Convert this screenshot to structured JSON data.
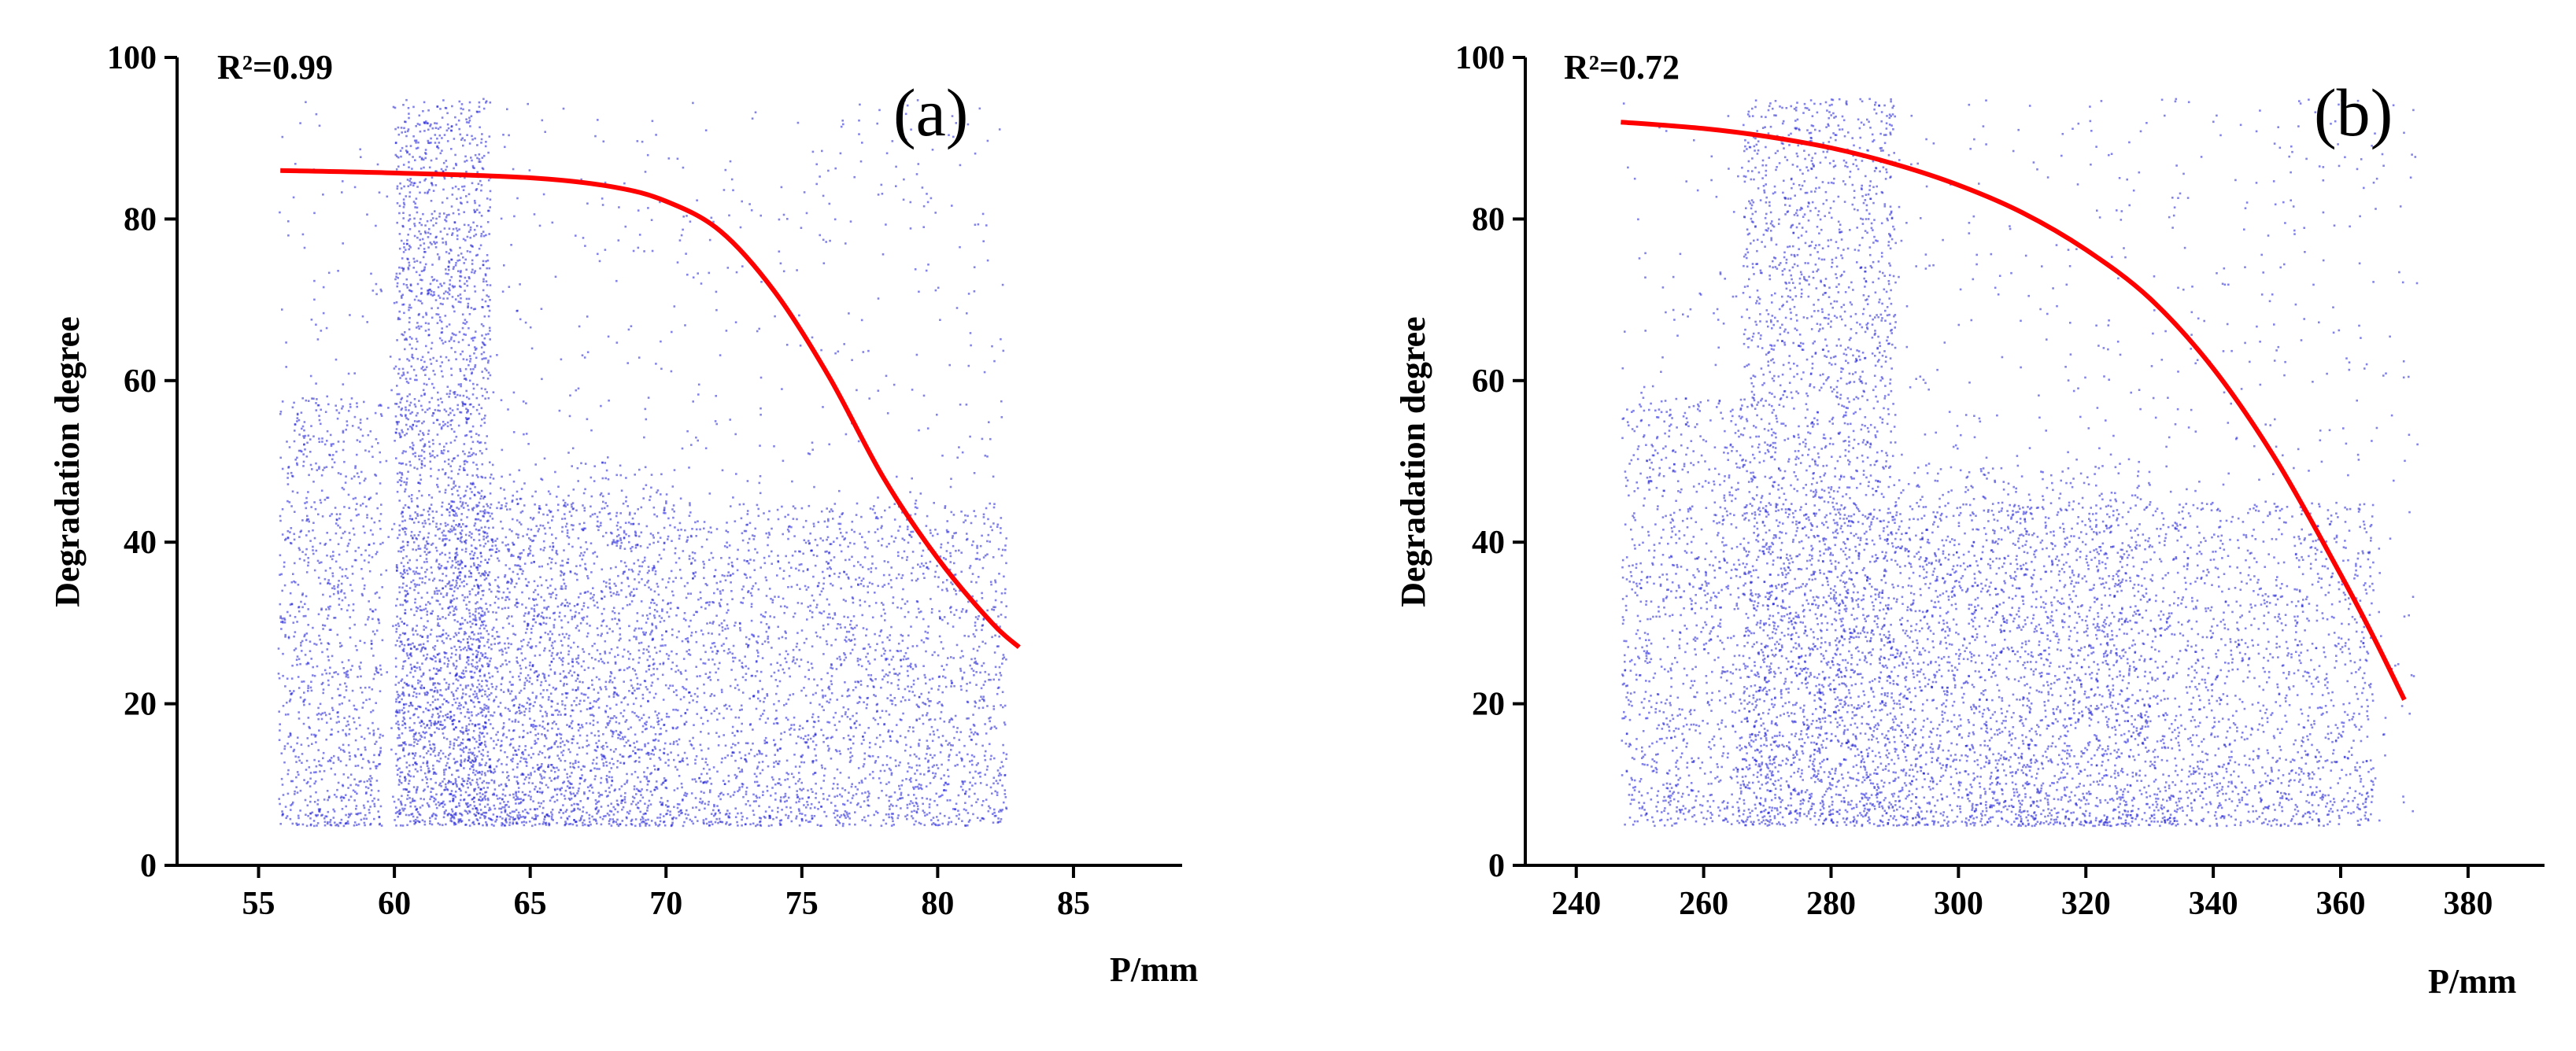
{
  "chart_data": [
    {
      "type": "scatter",
      "panel_label": "(a)",
      "annotation": "R²=0.99",
      "xlabel": "P/mm",
      "ylabel": "Degradation degree",
      "xlim": [
        52,
        89
      ],
      "ylim": [
        0,
        100
      ],
      "xticks": [
        55,
        60,
        65,
        70,
        75,
        80,
        85
      ],
      "yticks": [
        0,
        20,
        40,
        60,
        80,
        100
      ],
      "colors": {
        "points": "#1f1fd6",
        "fit": "#ff0000"
      },
      "point_clusters": [
        {
          "x": [
            55.7,
            59.5
          ],
          "y": [
            5,
            58
          ],
          "density": 0.1
        },
        {
          "x": [
            60.0,
            63.5
          ],
          "y": [
            5,
            95
          ],
          "density": 0.22
        },
        {
          "x": [
            60.0,
            82.5
          ],
          "y": [
            5,
            45
          ],
          "density": 0.45
        },
        {
          "x": [
            62.0,
            70.0
          ],
          "y": [
            5,
            50
          ],
          "density": 0.12
        },
        {
          "x": [
            55.7,
            82.5
          ],
          "y": [
            5,
            95
          ],
          "density": 0.11
        }
      ],
      "fit_curve": {
        "x": [
          55.8,
          60,
          65,
          68,
          70,
          72,
          74,
          76,
          78,
          80,
          82,
          83
        ],
        "y": [
          86,
          85.7,
          85.1,
          84.0,
          82.2,
          78.5,
          71.0,
          60.5,
          48.0,
          38.0,
          30.0,
          27.0
        ]
      }
    },
    {
      "type": "scatter",
      "panel_label": "(b)",
      "annotation": "R²=0.72",
      "xlabel": "P/mm",
      "ylabel": "Degradation degree",
      "xlim": [
        232,
        392
      ],
      "ylim": [
        0,
        100
      ],
      "xticks": [
        240,
        260,
        280,
        300,
        320,
        340,
        360,
        380
      ],
      "yticks": [
        0,
        20,
        40,
        60,
        80,
        100
      ],
      "colors": {
        "points": "#1f1fd6",
        "fit": "#ff0000"
      },
      "point_clusters": [
        {
          "x": [
            247,
            266
          ],
          "y": [
            5,
            58
          ],
          "density": 0.1
        },
        {
          "x": [
            266,
            290
          ],
          "y": [
            5,
            95
          ],
          "density": 0.24
        },
        {
          "x": [
            266,
            365
          ],
          "y": [
            5,
            45
          ],
          "density": 0.45
        },
        {
          "x": [
            290,
            330
          ],
          "y": [
            5,
            50
          ],
          "density": 0.1
        },
        {
          "x": [
            247,
            372
          ],
          "y": [
            5,
            95
          ],
          "density": 0.11
        }
      ],
      "fit_curve": {
        "x": [
          247,
          260,
          270,
          280,
          290,
          300,
          310,
          320,
          330,
          340,
          350,
          360,
          365,
          370
        ],
        "y": [
          92,
          91.2,
          90.2,
          88.8,
          86.8,
          84.2,
          80.8,
          76.2,
          70.2,
          61.5,
          50.0,
          36.0,
          28.5,
          20.5
        ]
      }
    }
  ]
}
